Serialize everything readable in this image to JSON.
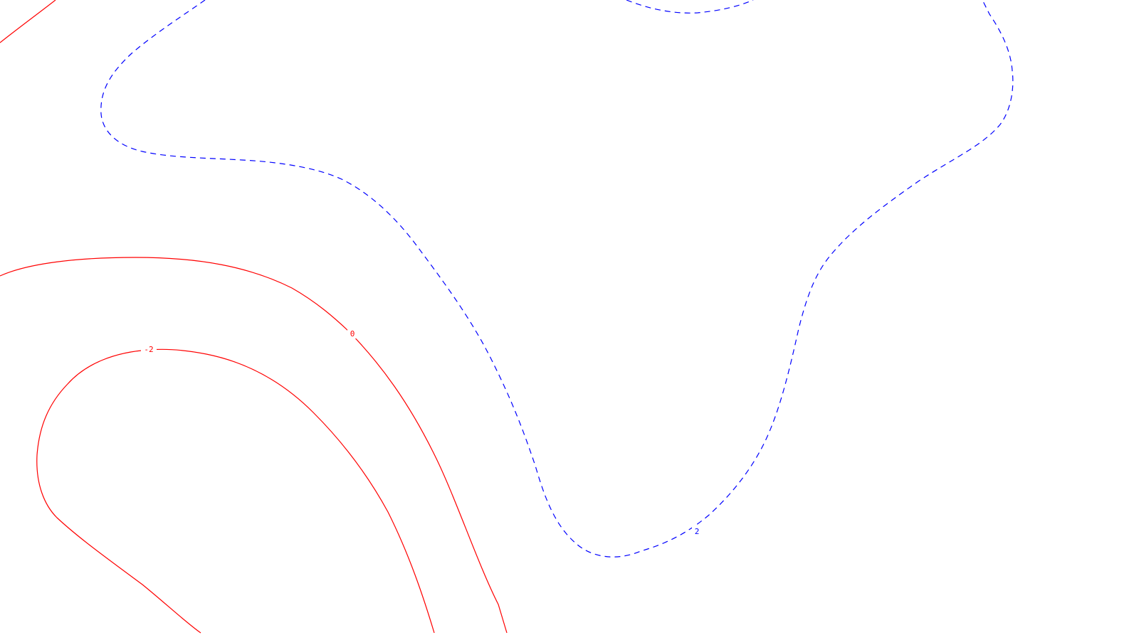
{
  "map": {
    "background": "#ffffff",
    "positive_color": "#ff0000",
    "negative_color": "#0000ff",
    "labels": {
      "zero": "0",
      "minus_two": "-2",
      "plus_two": "2"
    }
  }
}
